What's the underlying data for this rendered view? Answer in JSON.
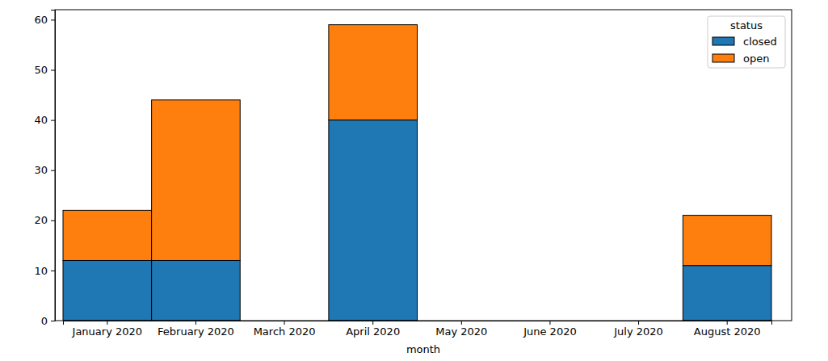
{
  "chart_data": {
    "type": "bar",
    "stacked": true,
    "legend": "upper right",
    "grid": false,
    "x_label": "month",
    "legend_title": "status",
    "categories": [
      "January 2020",
      "February 2020",
      "March 2020",
      "April 2020",
      "May 2020",
      "June 2020",
      "July 2020",
      "August 2020"
    ],
    "series": [
      {
        "name": "closed",
        "color": "#1f77b4",
        "values": [
          12,
          12,
          0,
          40,
          0,
          0,
          0,
          11
        ]
      },
      {
        "name": "open",
        "color": "#ff7f0e",
        "values": [
          10,
          32,
          0,
          19,
          0,
          0,
          0,
          10
        ]
      }
    ],
    "ylim": [
      0,
      62
    ],
    "yticks": [
      0,
      10,
      20,
      30,
      40,
      50,
      60
    ]
  }
}
